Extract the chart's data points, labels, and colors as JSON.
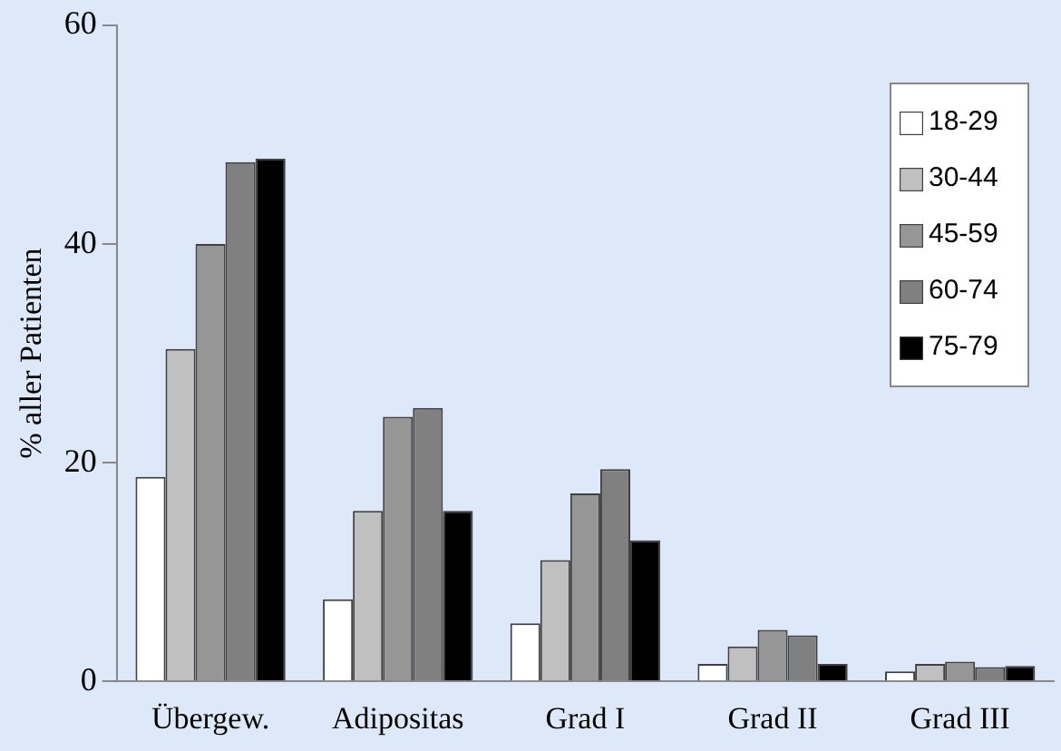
{
  "chart_data": {
    "type": "bar",
    "ylabel": "% aller Patienten",
    "categories": [
      "Übergew.",
      "Adipositas",
      "Grad I",
      "Grad II",
      "Grad III"
    ],
    "series": [
      {
        "name": "18-29",
        "color": "#ffffff",
        "values": [
          18.7,
          7.5,
          5.3,
          1.6,
          0.9
        ]
      },
      {
        "name": "30-44",
        "color": "#c0c0c0",
        "values": [
          30.4,
          15.6,
          11.1,
          3.2,
          1.6
        ]
      },
      {
        "name": "45-59",
        "color": "#969696",
        "values": [
          40,
          24.2,
          17.2,
          4.7,
          1.8
        ]
      },
      {
        "name": "60-74",
        "color": "#808080",
        "values": [
          47.5,
          25.0,
          19.4,
          4.2,
          1.3
        ]
      },
      {
        "name": "75-79",
        "color": "#000000",
        "values": [
          47.8,
          15.6,
          12.9,
          1.6,
          1.4
        ]
      }
    ],
    "ylim": [
      0,
      60
    ],
    "yticks": [
      0,
      20,
      40,
      60
    ],
    "grid": false,
    "legend": "top right"
  }
}
